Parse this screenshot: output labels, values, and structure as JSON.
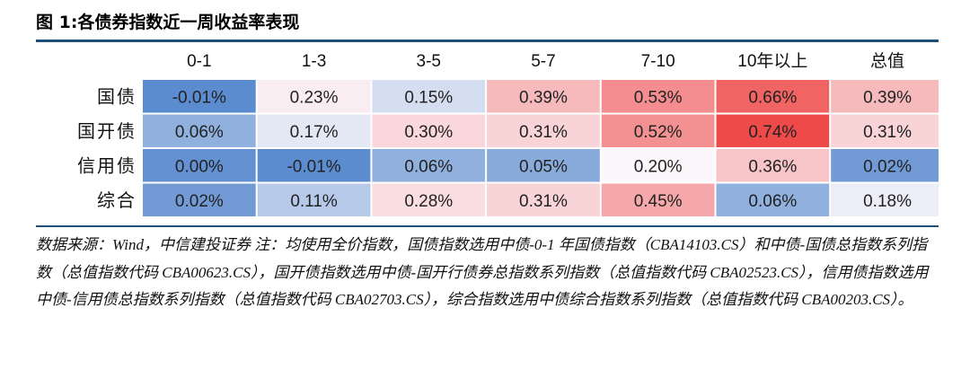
{
  "figure": {
    "title": "图 1:各债券指数近一周收益率表现",
    "note": "数据来源：Wind，中信建投证券  注：均使用全价指数，国债指数选用中债-0-1 年国债指数（CBA14103.CS）和中债-国债总指数系列指数（总值指数代码 CBA00623.CS），国开债指数选用中债-国开行债券总指数系列指数（总值指数代码 CBA02523.CS），信用债指数选用中债-信用债总指数系列指数（总值指数代码 CBA02703.CS），综合指数选用中债综合指数系列指数（总值指数代码 CBA00203.CS）。"
  },
  "chart_data": {
    "type": "heatmap",
    "title": "",
    "columns": [
      "0-1",
      "1-3",
      "3-5",
      "5-7",
      "7-10",
      "10年以上",
      "总值"
    ],
    "rows": [
      "国债",
      "国开债",
      "信用债",
      "综合"
    ],
    "values": [
      [
        -0.01,
        0.23,
        0.15,
        0.39,
        0.53,
        0.66,
        0.39
      ],
      [
        0.06,
        0.17,
        0.3,
        0.31,
        0.52,
        0.74,
        0.31
      ],
      [
        0.0,
        -0.01,
        0.06,
        0.05,
        0.2,
        0.36,
        0.02
      ],
      [
        0.02,
        0.11,
        0.28,
        0.31,
        0.45,
        0.06,
        0.18
      ]
    ],
    "labels": [
      [
        "-0.01%",
        "0.23%",
        "0.15%",
        "0.39%",
        "0.53%",
        "0.66%",
        "0.39%"
      ],
      [
        "0.06%",
        "0.17%",
        "0.30%",
        "0.31%",
        "0.52%",
        "0.74%",
        "0.31%"
      ],
      [
        "0.00%",
        "-0.01%",
        "0.06%",
        "0.05%",
        "0.20%",
        "0.36%",
        "0.02%"
      ],
      [
        "0.02%",
        "0.11%",
        "0.28%",
        "0.31%",
        "0.45%",
        "0.06%",
        "0.18%"
      ]
    ],
    "colors": {
      "low": "#5b8cd0",
      "mid": "#fbf7fb",
      "high": "#ee4a4a"
    },
    "scale": {
      "min": -0.01,
      "mid": 0.2,
      "max": 0.74
    }
  }
}
